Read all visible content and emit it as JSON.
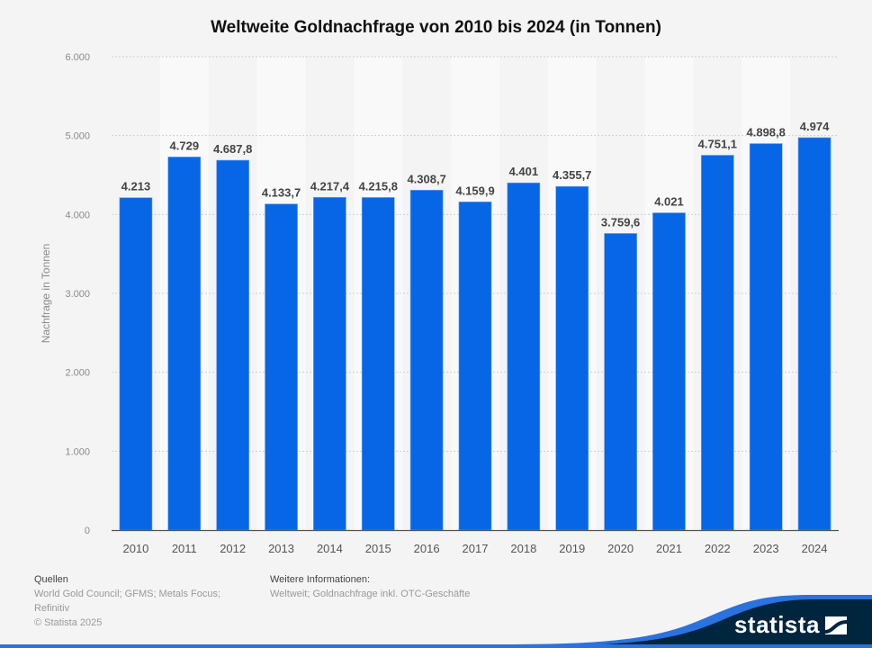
{
  "chart_data": {
    "type": "bar",
    "title": "Weltweite Goldnachfrage von 2010 bis 2024 (in Tonnen)",
    "xlabel": "",
    "ylabel": "Nachfrage in Tonnen",
    "ylim": [
      0,
      6000
    ],
    "yticks": [
      0,
      1000,
      2000,
      3000,
      4000,
      5000,
      6000
    ],
    "ytick_labels": [
      "0",
      "1.000",
      "2.000",
      "3.000",
      "4.000",
      "5.000",
      "6.000"
    ],
    "grid": true,
    "categories": [
      "2010",
      "2011",
      "2012",
      "2013",
      "2014",
      "2015",
      "2016",
      "2017",
      "2018",
      "2019",
      "2020",
      "2021",
      "2022",
      "2023",
      "2024"
    ],
    "values": [
      4213,
      4729,
      4687.8,
      4133.7,
      4217.4,
      4215.8,
      4308.7,
      4159.9,
      4401,
      4355.7,
      3759.6,
      4021,
      4751.1,
      4898.8,
      4974
    ],
    "data_labels": [
      "4.213",
      "4.729",
      "4.687,8",
      "4.133,7",
      "4.217,4",
      "4.215,8",
      "4.308,7",
      "4.159,9",
      "4.401",
      "4.355,7",
      "3.759,6",
      "4.021",
      "4.751,1",
      "4.898,8",
      "4.974"
    ],
    "bar_color": "#0766e6"
  },
  "footer": {
    "sources_heading": "Quellen",
    "sources_line1": "World Gold Council; GFMS; Metals Focus;",
    "sources_line2": "Refinitiv",
    "copyright": "© Statista 2025",
    "info_heading": "Weitere Informationen:",
    "info_text": "Weltweit; Goldnachfrage inkl. OTC-Geschäfte"
  },
  "brand": {
    "logo_text": "statista",
    "dark_color": "#00263f",
    "accent_color": "#2a72dd"
  }
}
